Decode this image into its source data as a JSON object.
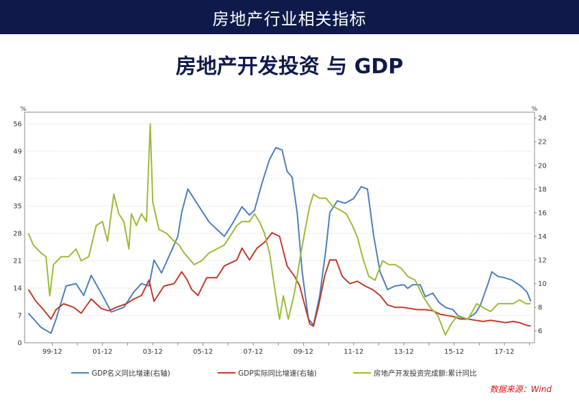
{
  "header": {
    "title": "房地产行业相关指标"
  },
  "page_title": "房地产开发投资 与 GDP",
  "source": "数据来源：Wind",
  "colors": {
    "header_bg": "#0f1a4b",
    "gdp_nominal": "#4a7ebb",
    "gdp_real": "#c0392b",
    "investment": "#9bbb35"
  },
  "chart_data": {
    "type": "line",
    "title": "",
    "xlabel": "",
    "ylabel_left": "%",
    "ylabel_right": "%",
    "x_ticks": [
      "99-12",
      "01-12",
      "03-12",
      "05-12",
      "07-12",
      "09-12",
      "11-12",
      "13-12",
      "15-12",
      "17-12"
    ],
    "ylim_left": [
      0,
      59
    ],
    "yticks_left": [
      0,
      7,
      14,
      21,
      28,
      35,
      42,
      49,
      56
    ],
    "ylim_right": [
      5,
      24.5
    ],
    "yticks_right": [
      6,
      8,
      10,
      12,
      14,
      16,
      18,
      20,
      22,
      24
    ],
    "grid": true,
    "legend_position": "bottom",
    "series": [
      {
        "name": "GDP名义同比增速(右轴)",
        "axis": "right",
        "color": "#4a7ebb",
        "points": [
          [
            1999.0,
            7.5
          ],
          [
            1999.5,
            6.3
          ],
          [
            1999.9,
            5.8
          ],
          [
            2000.1,
            7.0
          ],
          [
            2000.5,
            9.8
          ],
          [
            2000.9,
            10.0
          ],
          [
            2001.2,
            9.0
          ],
          [
            2001.5,
            10.7
          ],
          [
            2002.0,
            8.8
          ],
          [
            2002.3,
            7.6
          ],
          [
            2002.8,
            8.0
          ],
          [
            2003.2,
            9.3
          ],
          [
            2003.5,
            10.0
          ],
          [
            2003.8,
            9.8
          ],
          [
            2004.0,
            12.0
          ],
          [
            2004.3,
            10.9
          ],
          [
            2004.7,
            12.8
          ],
          [
            2004.95,
            14.0
          ],
          [
            2005.1,
            16.0
          ],
          [
            2005.35,
            18.0
          ],
          [
            2005.8,
            16.5
          ],
          [
            2006.2,
            15.2
          ],
          [
            2006.8,
            14.0
          ],
          [
            2007.1,
            15.0
          ],
          [
            2007.5,
            16.5
          ],
          [
            2007.8,
            15.8
          ],
          [
            2008.0,
            16.2
          ],
          [
            2008.3,
            18.5
          ],
          [
            2008.6,
            20.5
          ],
          [
            2008.85,
            21.5
          ],
          [
            2009.1,
            21.3
          ],
          [
            2009.3,
            19.5
          ],
          [
            2009.5,
            19.0
          ],
          [
            2009.7,
            16.0
          ],
          [
            2009.9,
            11.0
          ],
          [
            2010.15,
            7.0
          ],
          [
            2010.35,
            6.5
          ],
          [
            2010.6,
            9.0
          ],
          [
            2010.85,
            13.0
          ],
          [
            2011.0,
            16.0
          ],
          [
            2011.3,
            17.0
          ],
          [
            2011.6,
            16.8
          ],
          [
            2011.95,
            17.2
          ],
          [
            2012.25,
            18.2
          ],
          [
            2012.5,
            18.0
          ],
          [
            2012.75,
            14.0
          ],
          [
            2013.0,
            11.0
          ],
          [
            2013.3,
            9.5
          ],
          [
            2013.6,
            9.8
          ],
          [
            2013.95,
            9.9
          ],
          [
            2014.1,
            9.6
          ],
          [
            2014.3,
            9.9
          ],
          [
            2014.6,
            9.9
          ],
          [
            2014.8,
            8.9
          ],
          [
            2015.1,
            9.2
          ],
          [
            2015.35,
            8.4
          ],
          [
            2015.6,
            8.0
          ],
          [
            2015.9,
            7.8
          ],
          [
            2016.15,
            7.2
          ],
          [
            2016.45,
            7.0
          ],
          [
            2016.8,
            7.5
          ],
          [
            2017.0,
            8.2
          ],
          [
            2017.3,
            10.0
          ],
          [
            2017.45,
            11.0
          ],
          [
            2017.7,
            10.6
          ],
          [
            2017.95,
            10.5
          ],
          [
            2018.25,
            10.3
          ],
          [
            2018.6,
            9.8
          ],
          [
            2018.85,
            9.3
          ],
          [
            2019.0,
            8.5
          ]
        ]
      },
      {
        "name": "GDP实际同比增速(右轴)",
        "axis": "right",
        "color": "#c0392b",
        "points": [
          [
            1999.0,
            9.5
          ],
          [
            1999.3,
            8.5
          ],
          [
            1999.6,
            7.8
          ],
          [
            1999.9,
            7.0
          ],
          [
            2000.1,
            7.8
          ],
          [
            2000.4,
            8.3
          ],
          [
            2000.8,
            8.0
          ],
          [
            2001.1,
            7.5
          ],
          [
            2001.5,
            8.7
          ],
          [
            2001.9,
            7.9
          ],
          [
            2002.2,
            7.7
          ],
          [
            2002.5,
            8.0
          ],
          [
            2002.9,
            8.3
          ],
          [
            2003.2,
            8.7
          ],
          [
            2003.5,
            9.0
          ],
          [
            2003.8,
            10.3
          ],
          [
            2004.0,
            8.5
          ],
          [
            2004.4,
            9.8
          ],
          [
            2004.8,
            10.0
          ],
          [
            2005.1,
            11.0
          ],
          [
            2005.3,
            10.4
          ],
          [
            2005.5,
            9.5
          ],
          [
            2005.75,
            9.0
          ],
          [
            2006.1,
            10.5
          ],
          [
            2006.5,
            10.5
          ],
          [
            2006.8,
            11.5
          ],
          [
            2007.0,
            11.7
          ],
          [
            2007.3,
            12.0
          ],
          [
            2007.5,
            13.0
          ],
          [
            2007.8,
            12.0
          ],
          [
            2008.1,
            13.0
          ],
          [
            2008.4,
            13.5
          ],
          [
            2008.7,
            14.3
          ],
          [
            2009.0,
            14.0
          ],
          [
            2009.3,
            11.5
          ],
          [
            2009.6,
            10.6
          ],
          [
            2009.8,
            9.8
          ],
          [
            2010.05,
            7.8
          ],
          [
            2010.2,
            6.6
          ],
          [
            2010.35,
            6.4
          ],
          [
            2010.55,
            8.1
          ],
          [
            2010.8,
            10.7
          ],
          [
            2011.0,
            12.0
          ],
          [
            2011.25,
            12.0
          ],
          [
            2011.5,
            10.6
          ],
          [
            2011.8,
            10.0
          ],
          [
            2012.1,
            10.2
          ],
          [
            2012.4,
            9.8
          ],
          [
            2012.7,
            9.5
          ],
          [
            2013.0,
            9.0
          ],
          [
            2013.3,
            8.2
          ],
          [
            2013.6,
            8.0
          ],
          [
            2013.9,
            8.0
          ],
          [
            2014.2,
            7.9
          ],
          [
            2014.5,
            7.8
          ],
          [
            2014.8,
            7.8
          ],
          [
            2015.1,
            7.7
          ],
          [
            2015.4,
            7.4
          ],
          [
            2015.7,
            7.3
          ],
          [
            2015.95,
            7.2
          ],
          [
            2016.2,
            7.0
          ],
          [
            2016.5,
            7.0
          ],
          [
            2016.8,
            6.9
          ],
          [
            2017.1,
            6.8
          ],
          [
            2017.4,
            6.9
          ],
          [
            2017.7,
            6.8
          ],
          [
            2018.0,
            6.7
          ],
          [
            2018.3,
            6.8
          ],
          [
            2018.55,
            6.7
          ],
          [
            2018.8,
            6.5
          ],
          [
            2019.0,
            6.4
          ]
        ]
      },
      {
        "name": "房地产开发投资完成额:累计同比",
        "axis": "left",
        "color": "#9bbb35",
        "points": [
          [
            1999.0,
            28
          ],
          [
            1999.2,
            25
          ],
          [
            1999.5,
            23
          ],
          [
            1999.7,
            22
          ],
          [
            1999.85,
            12
          ],
          [
            2000.0,
            20
          ],
          [
            2000.3,
            22
          ],
          [
            2000.6,
            22
          ],
          [
            2000.9,
            24
          ],
          [
            2001.1,
            21
          ],
          [
            2001.4,
            22
          ],
          [
            2001.7,
            30
          ],
          [
            2001.95,
            31
          ],
          [
            2002.15,
            26
          ],
          [
            2002.4,
            38
          ],
          [
            2002.6,
            33
          ],
          [
            2002.8,
            31
          ],
          [
            2003.0,
            24
          ],
          [
            2003.1,
            33
          ],
          [
            2003.3,
            30
          ],
          [
            2003.5,
            33
          ],
          [
            2003.7,
            31
          ],
          [
            2003.85,
            56
          ],
          [
            2003.95,
            36
          ],
          [
            2004.2,
            29
          ],
          [
            2004.5,
            28
          ],
          [
            2004.8,
            26
          ],
          [
            2005.0,
            25
          ],
          [
            2005.2,
            23
          ],
          [
            2005.6,
            20
          ],
          [
            2005.9,
            21
          ],
          [
            2006.2,
            23
          ],
          [
            2006.5,
            24
          ],
          [
            2006.8,
            25
          ],
          [
            2007.1,
            28
          ],
          [
            2007.3,
            30
          ],
          [
            2007.5,
            31
          ],
          [
            2007.8,
            31
          ],
          [
            2008.0,
            33
          ],
          [
            2008.2,
            31
          ],
          [
            2008.4,
            28
          ],
          [
            2008.6,
            23
          ],
          [
            2008.85,
            12
          ],
          [
            2009.0,
            6
          ],
          [
            2009.15,
            12
          ],
          [
            2009.35,
            6
          ],
          [
            2009.6,
            13
          ],
          [
            2009.85,
            23
          ],
          [
            2010.05,
            30
          ],
          [
            2010.2,
            35
          ],
          [
            2010.35,
            38
          ],
          [
            2010.6,
            37
          ],
          [
            2010.85,
            37
          ],
          [
            2011.1,
            35
          ],
          [
            2011.4,
            34
          ],
          [
            2011.65,
            33
          ],
          [
            2011.9,
            30
          ],
          [
            2012.1,
            27
          ],
          [
            2012.3,
            22
          ],
          [
            2012.55,
            17
          ],
          [
            2012.8,
            16
          ],
          [
            2013.1,
            21
          ],
          [
            2013.35,
            20
          ],
          [
            2013.6,
            20
          ],
          [
            2013.85,
            19
          ],
          [
            2014.1,
            17
          ],
          [
            2014.4,
            16
          ],
          [
            2014.7,
            12
          ],
          [
            2015.0,
            9
          ],
          [
            2015.3,
            7
          ],
          [
            2015.6,
            2
          ],
          [
            2015.85,
            5
          ],
          [
            2016.1,
            7
          ],
          [
            2016.5,
            6
          ],
          [
            2016.85,
            10
          ],
          [
            2017.1,
            9
          ],
          [
            2017.4,
            8
          ],
          [
            2017.7,
            10
          ],
          [
            2018.0,
            10
          ],
          [
            2018.3,
            10
          ],
          [
            2018.55,
            11
          ],
          [
            2018.8,
            10
          ],
          [
            2019.0,
            10
          ]
        ]
      }
    ]
  }
}
